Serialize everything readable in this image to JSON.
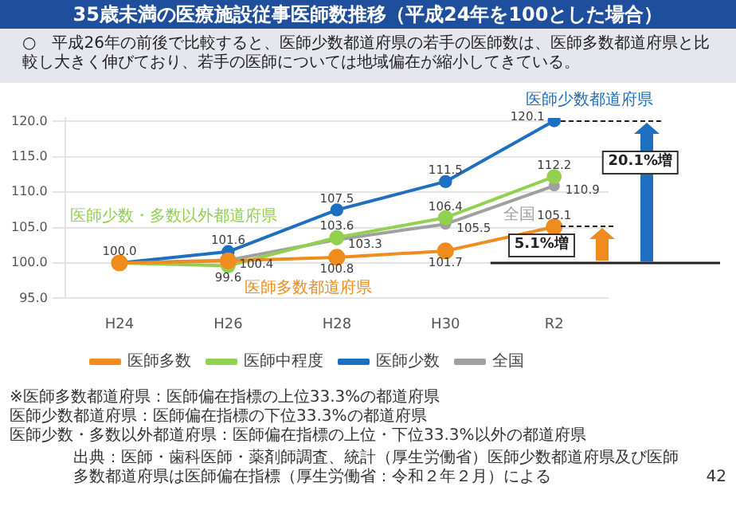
{
  "chart_data": {
    "type": "line",
    "title": "35歳未満の医療施設従事医師数推移（平成24年を100とした場合）",
    "subtitle": "○　平成26年の前後で比較すると、医師少数都道府県の若手の医師数は、医師多数都道府県と比較し大きく伸びており、若手の医師については地域偏在が縮小してきている。",
    "categories": [
      "H24",
      "H26",
      "H28",
      "H30",
      "R2"
    ],
    "series": [
      {
        "name": "医師多数",
        "color": "#f08c1e",
        "values": [
          100.0,
          100.3,
          100.8,
          101.7,
          105.1
        ],
        "value_labels": [
          null,
          null,
          "100.8",
          "101.7",
          "105.1"
        ]
      },
      {
        "name": "医師中程度",
        "color": "#92d050",
        "values": [
          100.0,
          99.6,
          103.6,
          106.4,
          112.2
        ],
        "value_labels": [
          null,
          "99.6",
          "103.6",
          "106.4",
          "112.2"
        ]
      },
      {
        "name": "医師少数",
        "color": "#1f6fc0",
        "values": [
          100.0,
          101.6,
          107.5,
          111.5,
          120.1
        ],
        "value_labels": [
          "100.0",
          "101.6",
          "107.5",
          "111.5",
          "120.1"
        ]
      },
      {
        "name": "全国",
        "color": "#a0a0a0",
        "values": [
          100.0,
          100.4,
          103.3,
          105.5,
          110.9
        ],
        "value_labels": [
          null,
          "100.4",
          "103.3",
          "105.5",
          "110.9"
        ]
      }
    ],
    "ylim": [
      95,
      120.5
    ],
    "yticks": [
      {
        "value": 95,
        "label": "95.0"
      },
      {
        "value": 100,
        "label": "100.0"
      },
      {
        "value": 105,
        "label": "105.0"
      },
      {
        "value": 110,
        "label": "110.0"
      },
      {
        "value": 115,
        "label": "115.0"
      },
      {
        "value": 120,
        "label": "120.0"
      }
    ],
    "grid": "y",
    "legend": "bottom",
    "marker": "circle",
    "ref_lines": [
      {
        "axis": "y",
        "value": 100,
        "color": "#222222"
      }
    ],
    "annotations": [
      "医師少数都道府県",
      "医師少数・多数以外都道府県",
      "全国",
      "医師多数都道府県",
      "20.1%増",
      "5.1%増",
      "※医師多数都道府県：医師偏在指標の上位33.3%の都道府県",
      "医師少数都道府県：医師偏在指標の下位33.3%の都道府県",
      "医師少数・多数以外都道府県：医師偏在指標の上位・下位33.3%以外の都道府県",
      "出典：医師・歯科医師・薬剤師調査、統計（厚生労働省）医師少数都道府県及び医師多数都道府県は医師偏在指標（厚生労働省：令和２年２月）による",
      "42"
    ]
  }
}
